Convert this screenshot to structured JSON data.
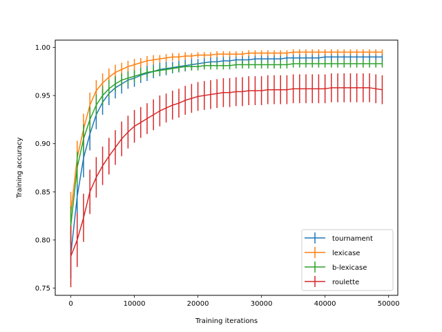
{
  "chart_data": {
    "type": "line",
    "title": "",
    "xlabel": "Training iterations",
    "ylabel": "Training accuracy",
    "xlim": [
      -2450,
      51450
    ],
    "ylim": [
      0.7425,
      1.0075
    ],
    "xticks": [
      0,
      10000,
      20000,
      30000,
      40000,
      50000
    ],
    "xtick_labels": [
      "0",
      "10000",
      "20000",
      "30000",
      "40000",
      "50000"
    ],
    "yticks": [
      0.75,
      0.8,
      0.85,
      0.9,
      0.95,
      1.0
    ],
    "ytick_labels": [
      "0.75",
      "0.80",
      "0.85",
      "0.90",
      "0.95",
      "1.00"
    ],
    "legend_position": "lower-right",
    "x": [
      0,
      1000,
      2000,
      3000,
      4000,
      5000,
      6000,
      7000,
      8000,
      9000,
      10000,
      11000,
      12000,
      13000,
      14000,
      15000,
      16000,
      17000,
      18000,
      19000,
      20000,
      21000,
      22000,
      23000,
      24000,
      25000,
      26000,
      27000,
      28000,
      29000,
      30000,
      31000,
      32000,
      33000,
      34000,
      35000,
      36000,
      37000,
      38000,
      39000,
      40000,
      41000,
      42000,
      43000,
      44000,
      45000,
      46000,
      47000,
      48000,
      49000
    ],
    "series": [
      {
        "name": "tournament",
        "color": "#1f77b4",
        "values": [
          0.785,
          0.845,
          0.885,
          0.91,
          0.93,
          0.943,
          0.952,
          0.958,
          0.962,
          0.966,
          0.968,
          0.971,
          0.973,
          0.975,
          0.977,
          0.978,
          0.979,
          0.98,
          0.981,
          0.982,
          0.983,
          0.984,
          0.985,
          0.985,
          0.986,
          0.986,
          0.987,
          0.987,
          0.987,
          0.988,
          0.988,
          0.988,
          0.988,
          0.988,
          0.989,
          0.989,
          0.989,
          0.989,
          0.989,
          0.989,
          0.99,
          0.99,
          0.99,
          0.99,
          0.99,
          0.99,
          0.99,
          0.99,
          0.99,
          0.99
        ],
        "errors": [
          0.025,
          0.022,
          0.02,
          0.017,
          0.015,
          0.013,
          0.012,
          0.011,
          0.01,
          0.009,
          0.009,
          0.008,
          0.008,
          0.007,
          0.007,
          0.007,
          0.006,
          0.006,
          0.006,
          0.006,
          0.005,
          0.005,
          0.005,
          0.005,
          0.005,
          0.005,
          0.004,
          0.004,
          0.004,
          0.004,
          0.004,
          0.004,
          0.004,
          0.004,
          0.004,
          0.004,
          0.004,
          0.004,
          0.004,
          0.004,
          0.004,
          0.004,
          0.004,
          0.004,
          0.004,
          0.004,
          0.004,
          0.004,
          0.004,
          0.004
        ]
      },
      {
        "name": "lexicase",
        "color": "#ff7f0e",
        "values": [
          0.828,
          0.885,
          0.915,
          0.94,
          0.955,
          0.963,
          0.969,
          0.974,
          0.977,
          0.98,
          0.982,
          0.984,
          0.986,
          0.987,
          0.988,
          0.989,
          0.99,
          0.99,
          0.991,
          0.991,
          0.992,
          0.992,
          0.992,
          0.993,
          0.993,
          0.993,
          0.993,
          0.993,
          0.994,
          0.994,
          0.994,
          0.994,
          0.994,
          0.994,
          0.994,
          0.995,
          0.995,
          0.995,
          0.995,
          0.995,
          0.995,
          0.995,
          0.995,
          0.995,
          0.995,
          0.995,
          0.995,
          0.995,
          0.995,
          0.995
        ],
        "errors": [
          0.022,
          0.018,
          0.016,
          0.013,
          0.011,
          0.01,
          0.009,
          0.008,
          0.007,
          0.006,
          0.006,
          0.005,
          0.005,
          0.005,
          0.004,
          0.004,
          0.004,
          0.004,
          0.004,
          0.003,
          0.003,
          0.003,
          0.003,
          0.003,
          0.003,
          0.003,
          0.003,
          0.003,
          0.003,
          0.003,
          0.003,
          0.003,
          0.003,
          0.003,
          0.003,
          0.003,
          0.003,
          0.003,
          0.003,
          0.003,
          0.003,
          0.003,
          0.003,
          0.003,
          0.003,
          0.003,
          0.003,
          0.003,
          0.003,
          0.003
        ]
      },
      {
        "name": "b-lexicase",
        "color": "#2ca02c",
        "values": [
          0.815,
          0.875,
          0.905,
          0.925,
          0.94,
          0.95,
          0.957,
          0.962,
          0.966,
          0.968,
          0.97,
          0.972,
          0.974,
          0.975,
          0.976,
          0.977,
          0.978,
          0.979,
          0.98,
          0.98,
          0.98,
          0.981,
          0.981,
          0.981,
          0.981,
          0.981,
          0.982,
          0.982,
          0.982,
          0.982,
          0.982,
          0.982,
          0.982,
          0.982,
          0.982,
          0.983,
          0.983,
          0.983,
          0.983,
          0.983,
          0.983,
          0.983,
          0.983,
          0.983,
          0.983,
          0.983,
          0.983,
          0.983,
          0.983,
          0.983
        ],
        "errors": [
          0.02,
          0.017,
          0.015,
          0.013,
          0.011,
          0.01,
          0.009,
          0.008,
          0.007,
          0.007,
          0.006,
          0.006,
          0.005,
          0.005,
          0.005,
          0.004,
          0.004,
          0.004,
          0.004,
          0.004,
          0.004,
          0.004,
          0.004,
          0.004,
          0.004,
          0.004,
          0.004,
          0.004,
          0.004,
          0.004,
          0.004,
          0.004,
          0.004,
          0.004,
          0.004,
          0.004,
          0.004,
          0.004,
          0.004,
          0.004,
          0.004,
          0.004,
          0.004,
          0.004,
          0.004,
          0.004,
          0.004,
          0.004,
          0.004,
          0.004
        ]
      },
      {
        "name": "roulette",
        "color": "#d62728",
        "values": [
          0.783,
          0.8,
          0.823,
          0.85,
          0.865,
          0.877,
          0.887,
          0.896,
          0.905,
          0.912,
          0.918,
          0.922,
          0.926,
          0.93,
          0.934,
          0.937,
          0.94,
          0.942,
          0.945,
          0.947,
          0.949,
          0.95,
          0.951,
          0.952,
          0.953,
          0.953,
          0.954,
          0.954,
          0.955,
          0.955,
          0.955,
          0.956,
          0.956,
          0.956,
          0.956,
          0.957,
          0.957,
          0.957,
          0.957,
          0.957,
          0.957,
          0.958,
          0.958,
          0.958,
          0.958,
          0.958,
          0.958,
          0.958,
          0.957,
          0.956
        ],
        "errors": [
          0.032,
          0.028,
          0.025,
          0.023,
          0.021,
          0.02,
          0.019,
          0.018,
          0.018,
          0.017,
          0.017,
          0.016,
          0.016,
          0.016,
          0.016,
          0.015,
          0.015,
          0.015,
          0.015,
          0.015,
          0.015,
          0.015,
          0.015,
          0.015,
          0.015,
          0.015,
          0.015,
          0.015,
          0.015,
          0.015,
          0.015,
          0.015,
          0.015,
          0.015,
          0.015,
          0.015,
          0.015,
          0.015,
          0.015,
          0.015,
          0.015,
          0.015,
          0.015,
          0.015,
          0.015,
          0.015,
          0.015,
          0.015,
          0.015,
          0.015
        ]
      }
    ]
  }
}
